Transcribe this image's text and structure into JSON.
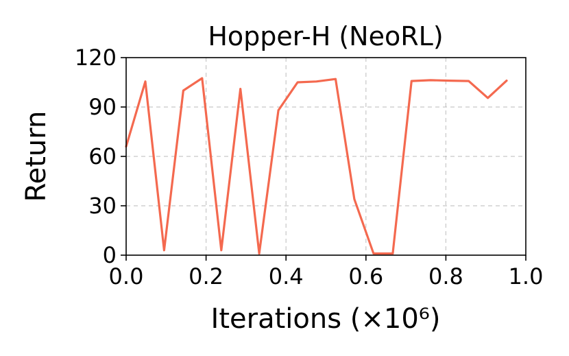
{
  "chart_data": {
    "type": "line",
    "title": "Hopper-H (NeoRL)",
    "xlabel": "Iterations (×10⁶)",
    "ylabel": "Return",
    "xlim": [
      0.0,
      1.0
    ],
    "ylim": [
      0,
      120
    ],
    "xticks": [
      "0.0",
      "0.2",
      "0.4",
      "0.6",
      "0.8",
      "1.0"
    ],
    "xtick_values": [
      0.0,
      0.2,
      0.4,
      0.6,
      0.8,
      1.0
    ],
    "yticks": [
      "0",
      "30",
      "60",
      "90",
      "120"
    ],
    "ytick_values": [
      0,
      30,
      60,
      90,
      120
    ],
    "grid": true,
    "series": [
      {
        "color": "#f4694f",
        "x": [
          0.0,
          0.048,
          0.095,
          0.143,
          0.19,
          0.238,
          0.286,
          0.333,
          0.381,
          0.429,
          0.476,
          0.524,
          0.571,
          0.619,
          0.667,
          0.714,
          0.762,
          0.81,
          0.857,
          0.905,
          0.952
        ],
        "y": [
          66,
          105.5,
          3,
          100,
          107.5,
          3,
          101,
          1,
          88,
          105,
          105.5,
          107,
          34,
          1,
          1,
          105.8,
          106.3,
          106,
          105.8,
          95.5,
          106
        ]
      }
    ]
  }
}
